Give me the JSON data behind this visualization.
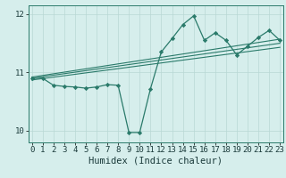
{
  "xlabel": "Humidex (Indice chaleur)",
  "x": [
    0,
    1,
    2,
    3,
    4,
    5,
    6,
    7,
    8,
    9,
    10,
    11,
    12,
    13,
    14,
    15,
    16,
    17,
    18,
    19,
    20,
    21,
    22,
    23
  ],
  "y_main": [
    10.9,
    10.9,
    10.78,
    10.76,
    10.75,
    10.73,
    10.75,
    10.79,
    10.78,
    9.97,
    9.97,
    10.72,
    11.35,
    11.58,
    11.82,
    11.97,
    11.55,
    11.68,
    11.55,
    11.3,
    11.45,
    11.6,
    11.72,
    11.55
  ],
  "trend1_x": [
    0,
    23
  ],
  "trend1_y": [
    10.92,
    11.57
  ],
  "trend2_x": [
    0,
    23
  ],
  "trend2_y": [
    10.9,
    11.5
  ],
  "trend3_x": [
    0,
    23
  ],
  "trend3_y": [
    10.87,
    11.43
  ],
  "color_main": "#2a7a6a",
  "color_trend": "#2a7a6a",
  "bg_color": "#d6eeec",
  "grid_color": "#b8d8d5",
  "spine_color": "#2a7a6a",
  "ylim": [
    9.8,
    12.15
  ],
  "xlim": [
    -0.3,
    23.3
  ],
  "yticks": [
    10,
    11,
    12
  ],
  "xticks": [
    0,
    1,
    2,
    3,
    4,
    5,
    6,
    7,
    8,
    9,
    10,
    11,
    12,
    13,
    14,
    15,
    16,
    17,
    18,
    19,
    20,
    21,
    22,
    23
  ],
  "tick_fontsize": 6.5,
  "label_fontsize": 7.5,
  "marker": "D",
  "markersize": 2.2,
  "linewidth": 0.9,
  "trend_linewidth": 0.8
}
